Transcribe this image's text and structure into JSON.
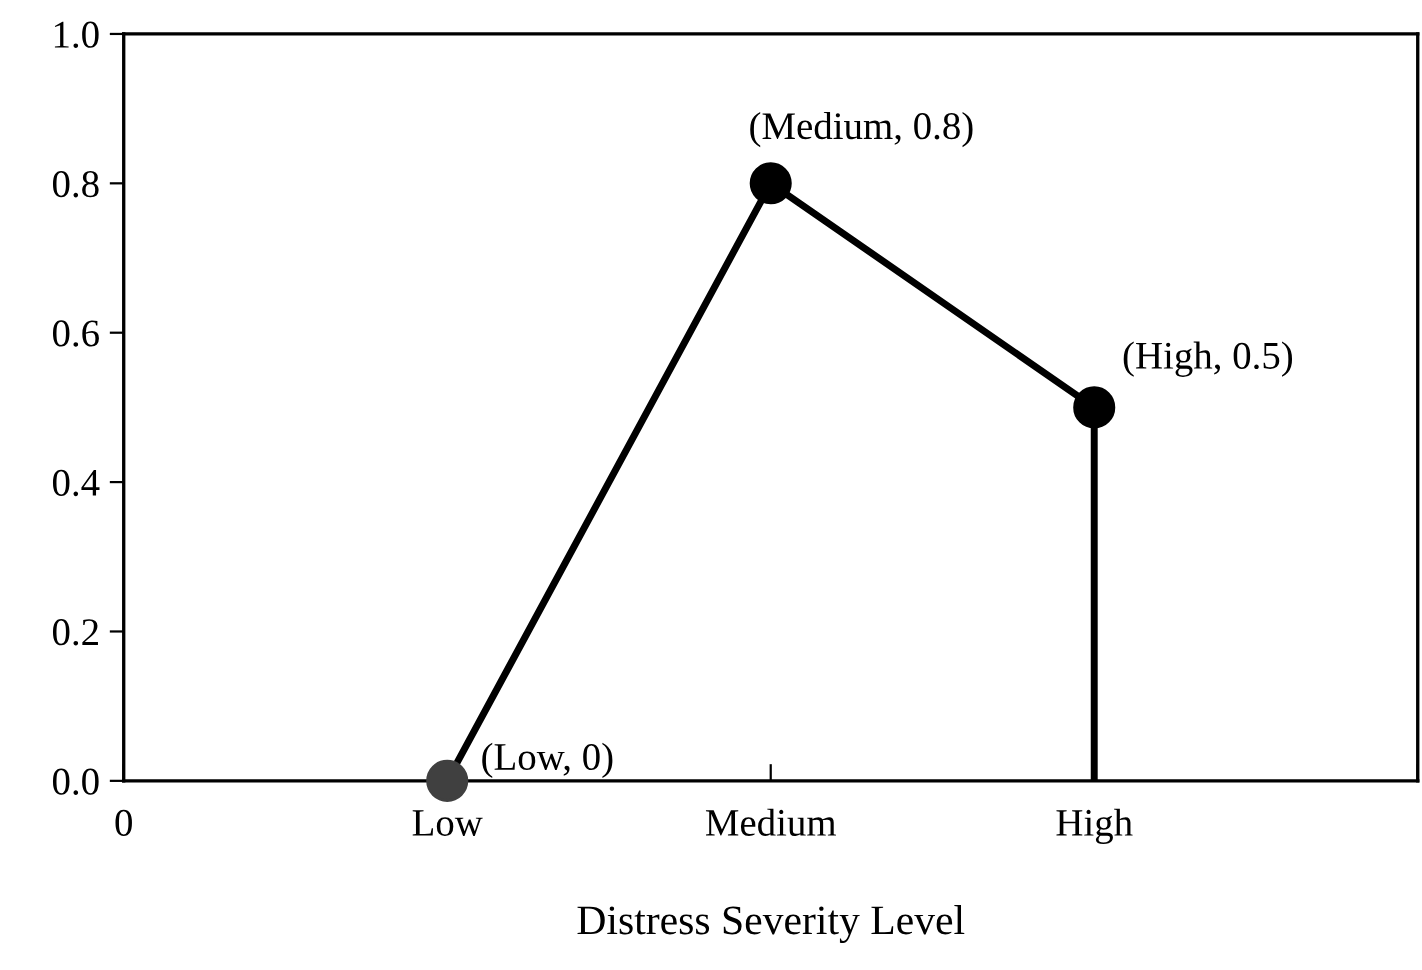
{
  "chart_data": {
    "type": "line",
    "xlabel": "Distress Severity Level",
    "categories": [
      "0",
      "Low",
      "Medium",
      "High",
      null
    ],
    "series": [
      {
        "color": "#000000",
        "values": [
          null,
          0,
          0.8,
          0.5,
          null
        ],
        "colors": [
          null,
          "#404040",
          "#000000",
          "#000000",
          null
        ],
        "marker": "circle"
      },
      {
        "color": "#000000",
        "x": [
          "High",
          "High"
        ],
        "values": [
          0.5,
          0
        ],
        "marker": "none"
      }
    ],
    "ylim": [
      0,
      1
    ],
    "yticks": [
      {
        "value": 0,
        "label": "0.0"
      },
      {
        "value": 0.2,
        "label": "0.2"
      },
      {
        "value": 0.4,
        "label": "0.4"
      },
      {
        "value": 0.6,
        "label": "0.6"
      },
      {
        "value": 0.8,
        "label": "0.8"
      },
      {
        "value": 1,
        "label": "1.0"
      }
    ],
    "annotations": [
      {
        "text": "(Low, 0)",
        "x": "Low",
        "y": 0
      },
      {
        "text": "(Medium, 0.8)",
        "x": "Medium",
        "y": 0.8
      },
      {
        "text": "(High, 0.5)",
        "x": "High",
        "y": 0.5
      }
    ],
    "grid": false,
    "legend": false,
    "line_style": "solid"
  }
}
